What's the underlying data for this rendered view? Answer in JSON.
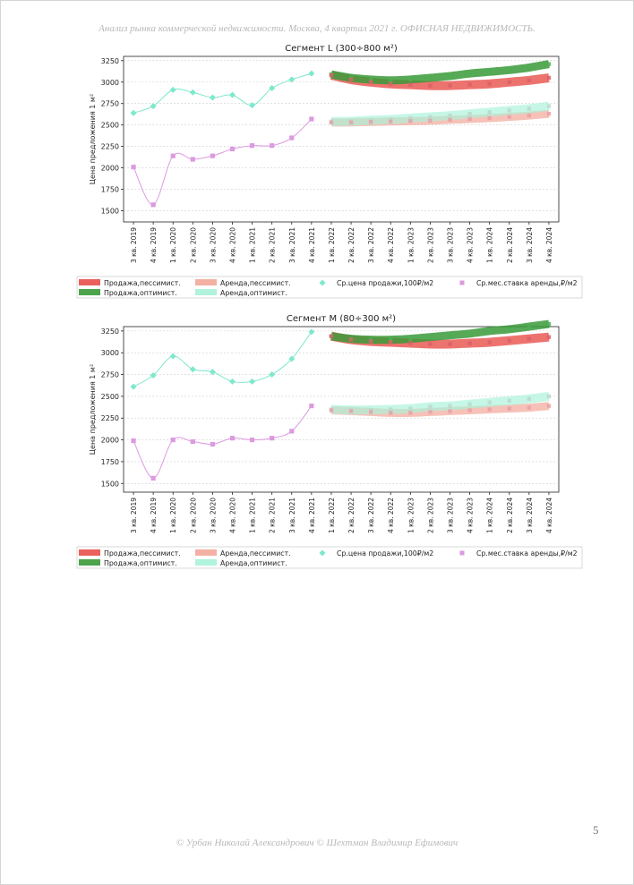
{
  "header": {
    "text": "Анализ рынка коммерческой недвижимости.  Москва,  4 квартал 2021 г.  ОФИСНАЯ НЕДВИЖИМОСТЬ."
  },
  "footer": {
    "text": "© Урбан Николай Александрович  © Шехтман Владимир Ефимович"
  },
  "page_number": "5",
  "colors": {
    "sale_pess": "#e8504b",
    "sale_opt": "#3a9a3a",
    "rent_pess": "#f2a89a",
    "rent_opt": "#a8f2d8",
    "sale_points": "#7ee8cc",
    "rent_points": "#dc9ae0"
  },
  "chart_data": [
    {
      "type": "line",
      "title": "Сегмент L (300÷800 м²)",
      "ylabel": "Цена предложения 1 м²",
      "ylim": [
        1370,
        3300
      ],
      "yticks": [
        1500,
        1750,
        2000,
        2250,
        2500,
        2750,
        3000,
        3250
      ],
      "grid": true,
      "legend_position": "bottom",
      "categories": [
        "3 кв. 2019",
        "4 кв. 2019",
        "1 кв. 2020",
        "2 кв. 2020",
        "3 кв. 2020",
        "4 кв. 2020",
        "1 кв. 2021",
        "2 кв. 2021",
        "3 кв. 2021",
        "4 кв. 2021",
        "1 кв. 2022",
        "2 кв. 2022",
        "3 кв. 2022",
        "4 кв. 2022",
        "1 кв. 2023",
        "2 кв. 2023",
        "3 кв. 2023",
        "4 кв. 2023",
        "1 кв. 2024",
        "2 кв. 2024",
        "3 кв. 2024",
        "4 кв. 2024"
      ],
      "series": [
        {
          "name": "Ср.цена продажи,100₽/м2",
          "kind": "points",
          "values": [
            2640,
            2720,
            2910,
            2880,
            2820,
            2850,
            2730,
            2930,
            3030,
            3100,
            null,
            null,
            null,
            null,
            null,
            null,
            null,
            null,
            null,
            null,
            null,
            null
          ]
        },
        {
          "name": "Ср.мес.ставка аренды,₽/м2",
          "kind": "points",
          "values": [
            2010,
            1570,
            2140,
            2100,
            2140,
            2220,
            2260,
            2260,
            2350,
            2570,
            null,
            null,
            null,
            null,
            null,
            null,
            null,
            null,
            null,
            null,
            null,
            null
          ]
        },
        {
          "name": "Продажа,пессимист.",
          "kind": "band",
          "values": [
            null,
            null,
            null,
            null,
            null,
            null,
            null,
            null,
            null,
            null,
            3080,
            3030,
            3000,
            2980,
            2970,
            2960,
            2960,
            2970,
            2980,
            3000,
            3020,
            3050
          ]
        },
        {
          "name": "Продажа,оптимист.",
          "kind": "band",
          "values": [
            null,
            null,
            null,
            null,
            null,
            null,
            null,
            null,
            null,
            null,
            3090,
            3050,
            3030,
            3020,
            3030,
            3050,
            3070,
            3100,
            3120,
            3140,
            3170,
            3210
          ]
        },
        {
          "name": "Аренда,пессимист.",
          "kind": "band",
          "values": [
            null,
            null,
            null,
            null,
            null,
            null,
            null,
            null,
            null,
            null,
            2530,
            2530,
            2535,
            2540,
            2545,
            2550,
            2560,
            2570,
            2580,
            2595,
            2610,
            2630
          ]
        },
        {
          "name": "Аренда,оптимист.",
          "kind": "band",
          "values": [
            null,
            null,
            null,
            null,
            null,
            null,
            null,
            null,
            null,
            null,
            2540,
            2545,
            2555,
            2565,
            2580,
            2595,
            2610,
            2630,
            2650,
            2670,
            2690,
            2720
          ]
        }
      ]
    },
    {
      "type": "line",
      "title": "Сегмент M (80÷300 м²)",
      "ylabel": "Цена предложения 1 м²",
      "ylim": [
        1400,
        3300
      ],
      "yticks": [
        1500,
        1750,
        2000,
        2250,
        2500,
        2750,
        3000,
        3250
      ],
      "grid": true,
      "legend_position": "bottom",
      "categories": [
        "3 кв. 2019",
        "4 кв. 2019",
        "1 кв. 2020",
        "2 кв. 2020",
        "3 кв. 2020",
        "4 кв. 2020",
        "1 кв. 2021",
        "2 кв. 2021",
        "3 кв. 2021",
        "4 кв. 2021",
        "1 кв. 2022",
        "2 кв. 2022",
        "3 кв. 2022",
        "4 кв. 2022",
        "1 кв. 2023",
        "2 кв. 2023",
        "3 кв. 2023",
        "4 кв. 2023",
        "1 кв. 2024",
        "2 кв. 2024",
        "3 кв. 2024",
        "4 кв. 2024"
      ],
      "series": [
        {
          "name": "Ср.цена продажи,100₽/м2",
          "kind": "points",
          "values": [
            2610,
            2740,
            2960,
            2810,
            2780,
            2670,
            2670,
            2750,
            2930,
            3240,
            null,
            null,
            null,
            null,
            null,
            null,
            null,
            null,
            null,
            null,
            null,
            null
          ]
        },
        {
          "name": "Ср.мес.ставка аренды,₽/м2",
          "kind": "points",
          "values": [
            1990,
            1560,
            2000,
            1980,
            1950,
            2020,
            2000,
            2020,
            2100,
            2390,
            null,
            null,
            null,
            null,
            null,
            null,
            null,
            null,
            null,
            null,
            null,
            null
          ]
        },
        {
          "name": "Продажа,пессимист.",
          "kind": "band",
          "values": [
            null,
            null,
            null,
            null,
            null,
            null,
            null,
            null,
            null,
            null,
            3190,
            3150,
            3130,
            3120,
            3110,
            3100,
            3100,
            3110,
            3120,
            3140,
            3160,
            3180
          ]
        },
        {
          "name": "Продажа,оптимист.",
          "kind": "band",
          "values": [
            null,
            null,
            null,
            null,
            null,
            null,
            null,
            null,
            null,
            null,
            3190,
            3160,
            3150,
            3150,
            3160,
            3180,
            3200,
            3220,
            3250,
            3270,
            3300,
            3330
          ]
        },
        {
          "name": "Аренда,пессимист.",
          "kind": "band",
          "values": [
            null,
            null,
            null,
            null,
            null,
            null,
            null,
            null,
            null,
            null,
            2340,
            2330,
            2320,
            2310,
            2310,
            2320,
            2330,
            2340,
            2350,
            2360,
            2370,
            2390
          ]
        },
        {
          "name": "Аренда,оптимист.",
          "kind": "band",
          "values": [
            null,
            null,
            null,
            null,
            null,
            null,
            null,
            null,
            null,
            null,
            2350,
            2345,
            2345,
            2350,
            2360,
            2380,
            2390,
            2410,
            2430,
            2450,
            2470,
            2500
          ]
        }
      ]
    }
  ]
}
